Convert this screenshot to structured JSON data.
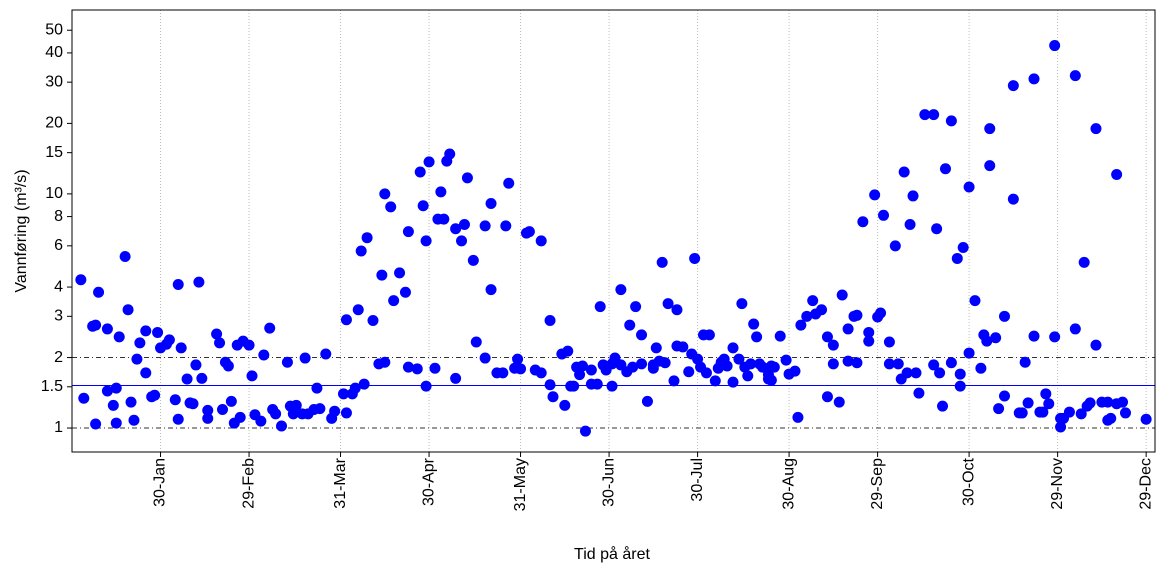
{
  "chart_data": {
    "type": "scatter",
    "x_label": "Tid på året",
    "y_label": "Vannføring (m³/s)",
    "color": "#0000ff",
    "log_y": true,
    "x_grid": true,
    "xlim": [
      0,
      367
    ],
    "ylim": [
      0.79,
      61
    ],
    "xticks": [
      {
        "value": 30,
        "label": "30-Jan"
      },
      {
        "value": 60,
        "label": "29-Feb"
      },
      {
        "value": 91,
        "label": "31-Mar"
      },
      {
        "value": 121,
        "label": "30-Apr"
      },
      {
        "value": 152,
        "label": "31-May"
      },
      {
        "value": 182,
        "label": "30-Jun"
      },
      {
        "value": 212,
        "label": "30-Jul"
      },
      {
        "value": 243,
        "label": "30-Aug"
      },
      {
        "value": 273,
        "label": "29-Sep"
      },
      {
        "value": 304,
        "label": "30-Oct"
      },
      {
        "value": 334,
        "label": "29-Nov"
      },
      {
        "value": 364,
        "label": "29-Dec"
      }
    ],
    "yticks": [
      1,
      1.5,
      2,
      3,
      4,
      6,
      8,
      10,
      15,
      20,
      30,
      40,
      50
    ],
    "reference_lines": [
      {
        "value": 1,
        "style": "dashdot",
        "color": "#333333"
      },
      {
        "value": 2,
        "style": "dashdot",
        "color": "#333333"
      },
      {
        "value": 1.52,
        "style": "solid",
        "color": "#0000ff"
      }
    ],
    "x": [
      3,
      4,
      7,
      8,
      8,
      9,
      12,
      12,
      14,
      15,
      15,
      16,
      18,
      19,
      20,
      21,
      22,
      23,
      25,
      25,
      27,
      28,
      29,
      30,
      32,
      33,
      35,
      36,
      36,
      37,
      39,
      40,
      41,
      42,
      43,
      44,
      46,
      46,
      49,
      50,
      51,
      52,
      53,
      54,
      55,
      56,
      57,
      58,
      60,
      61,
      62,
      64,
      65,
      67,
      68,
      69,
      71,
      73,
      74,
      75,
      76,
      78,
      79,
      80,
      82,
      83,
      84,
      86,
      88,
      89,
      92,
      93,
      93,
      95,
      96,
      97,
      98,
      99,
      100,
      102,
      104,
      105,
      106,
      106,
      108,
      109,
      111,
      113,
      114,
      114,
      117,
      118,
      119,
      120,
      120,
      121,
      123,
      124,
      125,
      126,
      127,
      128,
      130,
      130,
      132,
      133,
      134,
      136,
      137,
      140,
      140,
      142,
      142,
      144,
      146,
      147,
      148,
      150,
      151,
      152,
      154,
      155,
      157,
      159,
      159,
      162,
      162,
      163,
      166,
      167,
      168,
      169,
      170,
      171,
      172,
      173,
      174,
      176,
      176,
      178,
      179,
      180,
      181,
      183,
      183,
      184,
      186,
      186,
      188,
      189,
      190,
      191,
      193,
      193,
      195,
      197,
      197,
      198,
      199,
      200,
      201,
      202,
      204,
      205,
      205,
      207,
      209,
      210,
      211,
      212,
      213,
      214,
      215,
      216,
      218,
      219,
      220,
      221,
      222,
      224,
      224,
      226,
      227,
      228,
      229,
      230,
      231,
      232,
      233,
      234,
      236,
      236,
      237,
      237,
      238,
      240,
      242,
      243,
      245,
      246,
      247,
      249,
      251,
      252,
      254,
      256,
      256,
      258,
      258,
      260,
      261,
      263,
      263,
      265,
      266,
      266,
      268,
      270,
      270,
      272,
      273,
      274,
      275,
      277,
      277,
      279,
      280,
      281,
      282,
      283,
      284,
      285,
      286,
      287,
      289,
      292,
      292,
      293,
      294,
      295,
      296,
      298,
      298,
      300,
      301,
      301,
      302,
      304,
      304,
      306,
      308,
      309,
      310,
      311,
      311,
      313,
      314,
      316,
      316,
      319,
      319,
      321,
      322,
      323,
      324,
      326,
      326,
      328,
      329,
      330,
      331,
      333,
      333,
      335,
      335,
      336,
      338,
      340,
      340,
      342,
      343,
      344,
      345,
      347,
      347,
      349,
      351,
      351,
      352,
      354,
      354,
      356,
      357,
      364
    ],
    "values": [
      4.3,
      1.34,
      2.72,
      1.04,
      2.75,
      3.8,
      2.65,
      1.44,
      1.25,
      1.48,
      1.05,
      2.45,
      5.4,
      3.2,
      1.29,
      1.08,
      1.97,
      2.31,
      1.72,
      2.6,
      1.36,
      1.38,
      2.56,
      2.2,
      2.28,
      2.38,
      1.32,
      1.09,
      4.1,
      2.2,
      1.62,
      1.28,
      1.27,
      1.86,
      4.2,
      1.63,
      1.19,
      1.1,
      2.52,
      2.31,
      1.2,
      1.91,
      1.84,
      1.3,
      1.05,
      2.26,
      1.11,
      2.35,
      2.26,
      1.67,
      1.14,
      1.07,
      2.05,
      2.67,
      1.2,
      1.15,
      1.02,
      1.91,
      1.24,
      1.15,
      1.25,
      1.15,
      1.99,
      1.15,
      1.2,
      1.48,
      1.21,
      2.07,
      1.1,
      1.18,
      1.4,
      1.16,
      2.9,
      1.4,
      1.48,
      3.2,
      5.7,
      1.54,
      6.5,
      2.88,
      1.88,
      4.5,
      10,
      1.91,
      8.8,
      3.5,
      4.6,
      3.8,
      6.9,
      1.82,
      1.79,
      12.4,
      8.9,
      6.3,
      1.51,
      13.7,
      1.8,
      7.8,
      10.2,
      7.8,
      13.8,
      14.8,
      7.1,
      1.63,
      6.3,
      7.4,
      11.7,
      5.2,
      2.33,
      1.99,
      7.3,
      9.1,
      3.9,
      1.72,
      1.72,
      7.3,
      11.1,
      1.8,
      1.97,
      1.79,
      6.8,
      6.9,
      1.77,
      6.3,
      1.72,
      2.88,
      1.53,
      1.36,
      2.07,
      1.25,
      2.13,
      1.51,
      1.51,
      1.82,
      1.69,
      1.84,
      0.97,
      1.77,
      1.54,
      1.54,
      3.3,
      1.86,
      1.77,
      1.51,
      1.88,
      1.99,
      1.86,
      3.9,
      1.74,
      2.75,
      1.82,
      3.3,
      1.88,
      2.5,
      1.3,
      1.8,
      1.86,
      2.2,
      1.93,
      5.1,
      1.9,
      3.4,
      1.59,
      3.2,
      2.24,
      2.22,
      1.74,
      2.07,
      5.3,
      1.97,
      1.82,
      2.5,
      1.72,
      2.5,
      1.59,
      1.8,
      1.91,
      1.97,
      1.84,
      2.2,
      1.57,
      1.97,
      3.4,
      1.82,
      1.67,
      1.88,
      2.78,
      2.45,
      1.88,
      1.82,
      1.69,
      1.62,
      1.84,
      1.6,
      1.82,
      2.47,
      1.95,
      1.7,
      1.75,
      1.11,
      2.75,
      3.0,
      3.5,
      3.07,
      3.2,
      2.45,
      1.36,
      1.88,
      2.26,
      1.29,
      3.7,
      2.65,
      1.93,
      3.0,
      3.03,
      1.9,
      7.6,
      2.35,
      2.56,
      9.9,
      2.98,
      3.1,
      8.1,
      2.33,
      1.88,
      6.0,
      1.88,
      1.62,
      12.4,
      1.72,
      7.4,
      9.8,
      1.72,
      1.41,
      21.8,
      21.8,
      1.86,
      7.1,
      1.72,
      1.24,
      12.8,
      1.9,
      20.5,
      5.3,
      1.7,
      1.51,
      5.9,
      2.09,
      10.7,
      3.5,
      1.8,
      2.5,
      2.35,
      13.2,
      19.0,
      2.43,
      1.21,
      3.0,
      1.37,
      9.5,
      29,
      1.16,
      1.16,
      1.91,
      1.28,
      2.47,
      31,
      1.17,
      1.17,
      1.4,
      1.27,
      2.45,
      43,
      1.1,
      1.01,
      1.1,
      1.17,
      2.65,
      32,
      1.15,
      5.1,
      1.24,
      1.28,
      19,
      2.26,
      1.29,
      1.29,
      1.08,
      1.1,
      1.27,
      12.1,
      1.29,
      1.16,
      1.09
    ]
  }
}
